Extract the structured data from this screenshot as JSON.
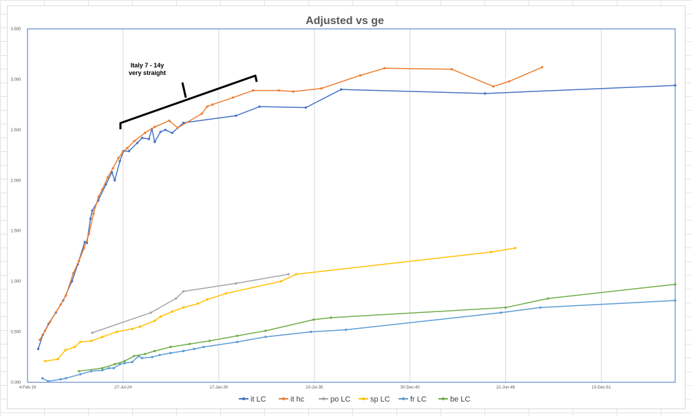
{
  "chart_data": {
    "type": "line",
    "title": "Adjusted vs ge",
    "xlabel": "",
    "ylabel": "",
    "x_type": "date",
    "y_tick_labels": [
      "0.000",
      "0.500",
      "1.000",
      "1.500",
      "2.000",
      "2.500",
      "3.000",
      "3.500"
    ],
    "y_ticks": [
      0,
      0.5,
      1.0,
      1.5,
      2.0,
      2.5,
      3.0,
      3.5
    ],
    "ylim": [
      0,
      3.5
    ],
    "x_tick_labels": [
      "4-Feb-19",
      "27-Jul-24",
      "17-Jan-30",
      "10-Jul-35",
      "30-Dec-40",
      "22-Jun-46",
      "13-Dec-51"
    ],
    "x_ticks": [
      "1919-02-04",
      "1924-07-27",
      "1930-01-17",
      "1935-07-10",
      "1940-12-30",
      "1946-06-22",
      "1951-12-13"
    ],
    "xlim": [
      "1919-02-04",
      "1956-03-08"
    ],
    "grid": {
      "vertical": true,
      "horizontal": false
    },
    "plot_border_color": "#4472C4",
    "legend_position": "bottom",
    "annotation": {
      "lines": [
        "Italy 7 - 14y",
        "very straight"
      ]
    },
    "series": [
      {
        "name": "it LC",
        "color": "#4472C4",
        "data": [
          [
            "1919-09-15",
            0.33
          ],
          [
            "1919-12-20",
            0.47
          ],
          [
            "1920-04-20",
            0.58
          ],
          [
            "1920-09-18",
            0.69
          ],
          [
            "1921-02-19",
            0.81
          ],
          [
            "1921-08-20",
            1.0
          ],
          [
            "1921-12-22",
            1.17
          ],
          [
            "1922-05-16",
            1.39
          ],
          [
            "1922-06-30",
            1.38
          ],
          [
            "1922-09-12",
            1.62
          ],
          [
            "1922-10-21",
            1.7
          ],
          [
            "1923-02-21",
            1.8
          ],
          [
            "1923-08-02",
            1.96
          ],
          [
            "1923-12-05",
            2.08
          ],
          [
            "1924-02-04",
            2.0
          ],
          [
            "1924-05-19",
            2.19
          ],
          [
            "1924-08-05",
            2.29
          ],
          [
            "1924-11-26",
            2.29
          ],
          [
            "1925-05-19",
            2.37
          ],
          [
            "1925-08-29",
            2.42
          ],
          [
            "1926-01-17",
            2.41
          ],
          [
            "1926-03-20",
            2.51
          ],
          [
            "1926-05-19",
            2.38
          ],
          [
            "1926-09-16",
            2.48
          ],
          [
            "1926-12-26",
            2.5
          ],
          [
            "1927-05-19",
            2.47
          ],
          [
            "1928-01-09",
            2.57
          ],
          [
            "1931-01-11",
            2.64
          ],
          [
            "1932-05-19",
            2.73
          ],
          [
            "1935-01-12",
            2.72
          ],
          [
            "1937-01-22",
            2.9
          ],
          [
            "1945-04-19",
            2.86
          ],
          [
            "1956-03-08",
            2.94
          ]
        ]
      },
      {
        "name": "it hc",
        "color": "#ED7D31",
        "data": [
          [
            "1919-10-19",
            0.42
          ],
          [
            "1920-02-04",
            0.51
          ],
          [
            "1920-05-22",
            0.6
          ],
          [
            "1920-12-27",
            0.77
          ],
          [
            "1921-04-18",
            0.86
          ],
          [
            "1921-09-18",
            1.08
          ],
          [
            "1922-01-13",
            1.2
          ],
          [
            "1922-05-03",
            1.33
          ],
          [
            "1922-08-13",
            1.47
          ],
          [
            "1922-11-16",
            1.67
          ],
          [
            "1923-02-28",
            1.84
          ],
          [
            "1923-05-19",
            1.91
          ],
          [
            "1923-09-08",
            2.03
          ],
          [
            "1923-12-27",
            2.12
          ],
          [
            "1924-04-19",
            2.22
          ],
          [
            "1924-07-19",
            2.28
          ],
          [
            "1924-10-23",
            2.32
          ],
          [
            "1925-03-21",
            2.39
          ],
          [
            "1925-10-26",
            2.47
          ],
          [
            "1926-05-20",
            2.53
          ],
          [
            "1927-03-21",
            2.59
          ],
          [
            "1927-09-11",
            2.52
          ],
          [
            "1929-01-26",
            2.66
          ],
          [
            "1929-05-19",
            2.73
          ],
          [
            "1929-09-09",
            2.75
          ],
          [
            "1930-11-12",
            2.82
          ],
          [
            "1932-01-04",
            2.89
          ],
          [
            "1933-06-26",
            2.89
          ],
          [
            "1934-04-26",
            2.88
          ],
          [
            "1935-12-04",
            2.91
          ],
          [
            "1938-02-24",
            3.04
          ],
          [
            "1939-07-14",
            3.11
          ],
          [
            "1943-05-23",
            3.1
          ],
          [
            "1945-10-07",
            2.93
          ],
          [
            "1946-09-05",
            2.98
          ],
          [
            "1948-07-25",
            3.12
          ]
        ]
      },
      {
        "name": "po LC",
        "color": "#A5A5A5",
        "data": [
          [
            "1922-10-21",
            0.49
          ],
          [
            "1926-02-27",
            0.69
          ],
          [
            "1927-08-05",
            0.83
          ],
          [
            "1928-01-09",
            0.9
          ],
          [
            "1931-01-11",
            0.98
          ],
          [
            "1934-01-12",
            1.07
          ]
        ]
      },
      {
        "name": "sp LC",
        "color": "#FFC000",
        "data": [
          [
            "1920-02-04",
            0.21
          ],
          [
            "1920-10-30",
            0.23
          ],
          [
            "1921-04-09",
            0.32
          ],
          [
            "1921-10-18",
            0.35
          ],
          [
            "1922-02-12",
            0.4
          ],
          [
            "1922-09-30",
            0.41
          ],
          [
            "1923-05-19",
            0.45
          ],
          [
            "1924-03-14",
            0.5
          ],
          [
            "1925-02-01",
            0.53
          ],
          [
            "1925-07-12",
            0.55
          ],
          [
            "1926-05-19",
            0.61
          ],
          [
            "1926-09-16",
            0.65
          ],
          [
            "1927-05-19",
            0.7
          ],
          [
            "1928-01-09",
            0.74
          ],
          [
            "1928-11-09",
            0.78
          ],
          [
            "1929-05-19",
            0.82
          ],
          [
            "1930-06-17",
            0.88
          ],
          [
            "1933-08-12",
            1.0
          ],
          [
            "1934-06-23",
            1.07
          ],
          [
            "1945-08-17",
            1.29
          ],
          [
            "1947-01-12",
            1.33
          ]
        ]
      },
      {
        "name": "fr LC",
        "color": "#5B9BD5",
        "data": [
          [
            "1919-12-12",
            0.04
          ],
          [
            "1920-04-10",
            0.01
          ],
          [
            "1920-12-27",
            0.03
          ],
          [
            "1921-04-18",
            0.04
          ],
          [
            "1922-02-12",
            0.08
          ],
          [
            "1922-09-30",
            0.11
          ],
          [
            "1923-05-19",
            0.12
          ],
          [
            "1923-10-04",
            0.14
          ],
          [
            "1924-01-13",
            0.14
          ],
          [
            "1924-05-19",
            0.18
          ],
          [
            "1924-08-28",
            0.19
          ],
          [
            "1925-02-01",
            0.2
          ],
          [
            "1925-06-16",
            0.26
          ],
          [
            "1925-08-29",
            0.24
          ],
          [
            "1926-03-27",
            0.25
          ],
          [
            "1926-08-30",
            0.27
          ],
          [
            "1927-04-16",
            0.29
          ],
          [
            "1928-01-09",
            0.31
          ],
          [
            "1928-08-21",
            0.33
          ],
          [
            "1929-03-06",
            0.35
          ],
          [
            "1931-02-09",
            0.4
          ],
          [
            "1932-09-23",
            0.45
          ],
          [
            "1935-04-29",
            0.5
          ],
          [
            "1937-04-30",
            0.52
          ],
          [
            "1946-03-15",
            0.69
          ],
          [
            "1948-06-16",
            0.74
          ],
          [
            "1956-03-08",
            0.81
          ]
        ]
      },
      {
        "name": "be LC",
        "color": "#70AD47",
        "data": [
          [
            "1922-01-13",
            0.11
          ],
          [
            "1923-05-19",
            0.14
          ],
          [
            "1924-02-04",
            0.18
          ],
          [
            "1924-08-28",
            0.21
          ],
          [
            "1925-03-13",
            0.26
          ],
          [
            "1925-10-26",
            0.28
          ],
          [
            "1926-05-19",
            0.31
          ],
          [
            "1927-04-16",
            0.35
          ],
          [
            "1928-05-19",
            0.38
          ],
          [
            "1929-07-11",
            0.41
          ],
          [
            "1931-02-09",
            0.46
          ],
          [
            "1932-09-23",
            0.51
          ],
          [
            "1935-06-25",
            0.62
          ],
          [
            "1936-06-21",
            0.64
          ],
          [
            "1946-06-22",
            0.74
          ],
          [
            "1948-11-24",
            0.83
          ],
          [
            "1956-03-08",
            0.97
          ]
        ]
      }
    ]
  }
}
